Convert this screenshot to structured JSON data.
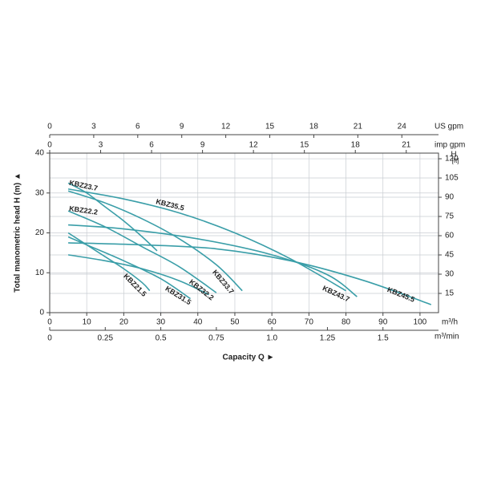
{
  "chart_data": {
    "type": "line",
    "xlabel": "Capacity Q ►",
    "ylabel": "Total manometric head H (m) ▲",
    "xunit": "m³/h",
    "y2label": "H",
    "y2unit": "[ft]",
    "xlim": [
      0,
      105
    ],
    "xticks": [
      0,
      10,
      20,
      30,
      40,
      50,
      60,
      70,
      80,
      90,
      100
    ],
    "ylim": [
      0,
      40
    ],
    "yticks": [
      0,
      10,
      20,
      30,
      40
    ],
    "y2lim": [
      0,
      124.4
    ],
    "y2ticks": [
      15,
      30,
      45,
      60,
      75,
      90,
      105,
      120
    ],
    "grid": true,
    "extra_x_axes": [
      {
        "position": "top",
        "unit": "US gpm",
        "lim": [
          0,
          26.5
        ],
        "ticks": [
          0,
          3,
          6,
          9,
          12,
          15,
          18,
          21,
          24
        ]
      },
      {
        "position": "top",
        "unit": "imp gpm",
        "lim": [
          0,
          22.9
        ],
        "ticks": [
          0,
          3,
          6,
          9,
          12,
          15,
          18,
          21
        ]
      },
      {
        "position": "bottom",
        "unit": "m³/min",
        "lim": [
          0,
          1.75
        ],
        "ticks": [
          0,
          0.25,
          0.5,
          0.75,
          {
            "value": 1,
            "label": "1.0"
          },
          1.25,
          1.5
        ]
      }
    ],
    "series": [
      {
        "name": "KBZ23.7",
        "color": "#3a9ea8",
        "x": [
          5,
          10,
          15,
          20,
          25,
          29
        ],
        "values": [
          32.5,
          30,
          26.5,
          23,
          19,
          15.5
        ]
      },
      {
        "name": "KBZ35.5",
        "color": "#3a9ea8",
        "x": [
          5,
          20,
          35,
          50,
          65,
          80
        ],
        "values": [
          31,
          28.5,
          25,
          20,
          13.5,
          5.5
        ]
      },
      {
        "name": "KBZ22.2",
        "color": "#3a9ea8",
        "x": [
          5,
          15,
          25,
          35,
          45
        ],
        "values": [
          25.5,
          21.5,
          16.5,
          11.5,
          5
        ]
      },
      {
        "name": "KBZ33.7",
        "color": "#3a9ea8",
        "x": [
          5,
          15,
          25,
          35,
          45,
          52
        ],
        "values": [
          30.5,
          27.5,
          23.5,
          18.5,
          12,
          5.5
        ]
      },
      {
        "name": "KBZ21.5",
        "color": "#3a9ea8",
        "x": [
          5,
          10,
          15,
          20,
          25,
          27
        ],
        "values": [
          20,
          17,
          14,
          11,
          7.5,
          5.5
        ]
      },
      {
        "name": "KBZ31.5",
        "color": "#3a9ea8",
        "x": [
          5,
          10,
          20,
          30,
          38
        ],
        "values": [
          19,
          17,
          13,
          8.5,
          3.5
        ]
      },
      {
        "name": "KBZ32.2",
        "color": "#3a9ea8",
        "x": [
          5,
          15,
          25,
          35,
          43
        ],
        "values": [
          14.5,
          13,
          11,
          8,
          4.5
        ]
      },
      {
        "name": "KBZ43.7",
        "color": "#3a9ea8",
        "x": [
          5,
          20,
          40,
          60,
          75,
          83
        ],
        "values": [
          22,
          21,
          18.5,
          14.5,
          9.5,
          4
        ]
      },
      {
        "name": "KBZ45.5",
        "color": "#3a9ea8",
        "x": [
          5,
          25,
          45,
          65,
          85,
          103
        ],
        "values": [
          17.5,
          17,
          16,
          13,
          8,
          2
        ]
      }
    ]
  }
}
